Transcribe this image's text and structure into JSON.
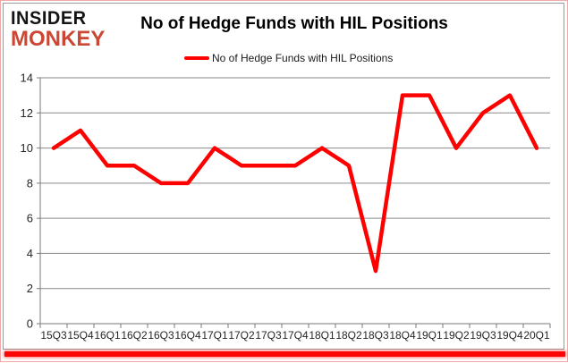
{
  "logo": {
    "line1": "INSIDER",
    "line2": "MONKEY"
  },
  "title": "No of Hedge Funds with HIL Positions",
  "legend": {
    "label": "No of Hedge Funds with HIL Positions"
  },
  "colors": {
    "line": "#ff0000",
    "grid": "#8a8a8a",
    "axis": "#7a7a7a",
    "tick_text": "#262626",
    "title_text": "#000000",
    "logo_primary": "#141414",
    "logo_accent": "#cb4633",
    "bottom_bar": "#fb0604",
    "frame_border": "#9a9a9a",
    "outer_border": "#efa9a9"
  },
  "chart_data": {
    "type": "line",
    "title": "No of Hedge Funds with HIL Positions",
    "categories": [
      "15Q3",
      "15Q4",
      "16Q1",
      "16Q2",
      "16Q3",
      "16Q4",
      "17Q1",
      "17Q2",
      "17Q3",
      "17Q4",
      "18Q1",
      "18Q2",
      "18Q3",
      "18Q4",
      "19Q1",
      "19Q2",
      "19Q3",
      "19Q4",
      "20Q1"
    ],
    "series": [
      {
        "name": "No of Hedge Funds with HIL Positions",
        "values": [
          10,
          11,
          9,
          9,
          8,
          8,
          10,
          9,
          9,
          9,
          10,
          9,
          3,
          13,
          13,
          10,
          12,
          13,
          10
        ]
      }
    ],
    "xlabel": "",
    "ylabel": "",
    "ylim": [
      0,
      14
    ],
    "ytick_step": 2,
    "grid": "horizontal",
    "legend_position": "top-center",
    "line_color": "#ff0000",
    "line_width": 4.5
  }
}
